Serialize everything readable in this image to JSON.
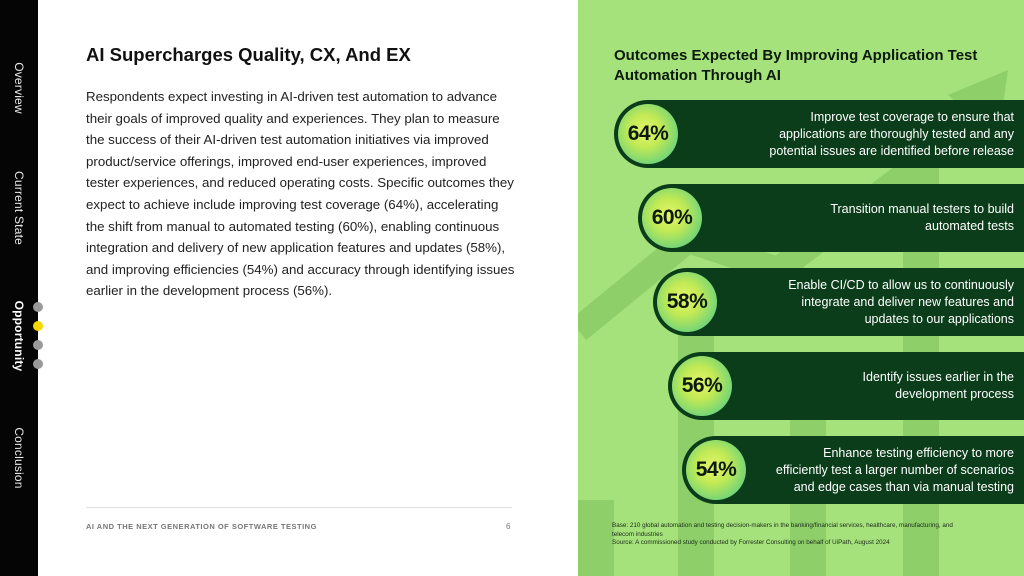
{
  "nav": {
    "items": [
      {
        "label": "Overview",
        "active": false
      },
      {
        "label": "Current State",
        "active": false
      },
      {
        "label": "Opportunity",
        "active": true
      },
      {
        "label": "Conclusion",
        "active": false
      }
    ],
    "progress_dots": 4,
    "active_dot": 2
  },
  "main": {
    "title": "AI Supercharges Quality, CX, And EX",
    "body": "Respondents expect investing in AI-driven test automation to advance their goals of improved quality and experiences. They plan to measure the success of their AI-driven test automation initiatives via improved product/service offerings, improved end-user experiences, improved tester experiences, and reduced operating costs. Specific outcomes they expect to achieve include improving test coverage (64%), accelerating the shift from manual to automated testing (60%), enabling continuous integration and delivery of new application features and updates (58%), and improving efficiencies (54%) and accuracy through identifying issues earlier in the development process (56%)."
  },
  "footer": {
    "text": "AI AND THE NEXT GENERATION OF SOFTWARE TESTING",
    "page": "6"
  },
  "panel": {
    "title": "Outcomes Expected By Improving Application Test Automation Through AI",
    "source_base": "Base: 210 global automation and testing decision-makers in the banking/financial services, healthcare, manufacturing, and telecom industries",
    "source_line": "Source: A commissioned study conducted by Forrester Consulting on behalf of UiPath, August 2024"
  },
  "colors": {
    "panel_bg": "#a6e27c",
    "bar": "#0b3d1b",
    "active_dot": "#f5d800",
    "nav_bg": "#050505"
  },
  "chart_data": {
    "type": "bar",
    "title": "Outcomes Expected By Improving Application Test Automation Through AI",
    "unit": "%",
    "categories": [
      "Improve test coverage to ensure that applications are thoroughly tested and any potential issues are identified before release",
      "Transition manual testers to build automated tests",
      "Enable CI/CD to allow us to continuously integrate and deliver new features and updates to our applications",
      "Identify issues earlier in the development process",
      "Enhance testing efficiency to more efficiently test a larger number of scenarios and edge cases than via manual testing"
    ],
    "values": [
      64,
      60,
      58,
      56,
      54
    ],
    "labels": [
      "64%",
      "60%",
      "58%",
      "56%",
      "54%"
    ],
    "lines": [
      [
        "Improve test coverage to ensure that",
        "applications are thoroughly tested and any",
        "potential issues are identified before release"
      ],
      [
        "Transition manual testers to build",
        "automated tests"
      ],
      [
        "Enable CI/CD to allow us to continuously",
        "integrate and deliver new features and",
        "updates to our applications"
      ],
      [
        "Identify issues earlier in the",
        "development process"
      ],
      [
        "Enhance testing efficiency to more",
        "efficiently test a larger number of scenarios",
        "and edge cases than via manual testing"
      ]
    ]
  }
}
